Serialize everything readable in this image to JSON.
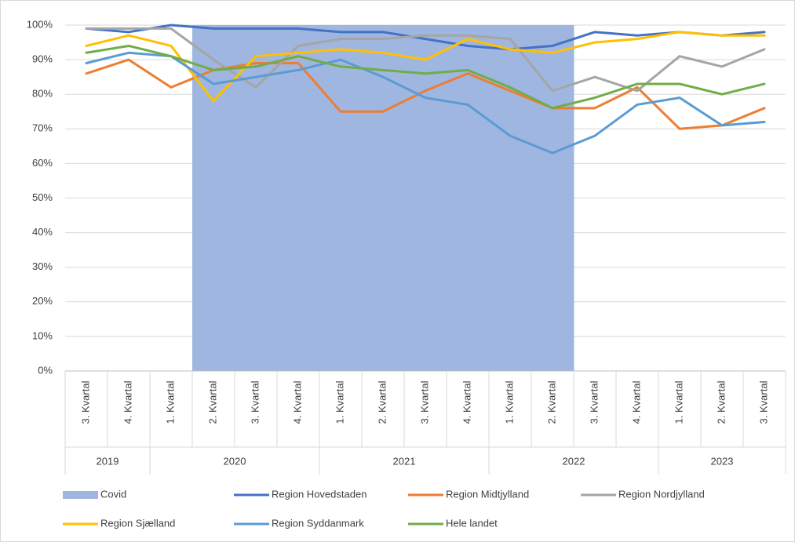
{
  "chart_data": {
    "type": "line",
    "groups": [
      {
        "label": "2019",
        "categories": [
          "3. Kvartal",
          "4. Kvartal"
        ]
      },
      {
        "label": "2020",
        "categories": [
          "1. Kvartal",
          "2. Kvartal",
          "3. Kvartal",
          "4. Kvartal"
        ]
      },
      {
        "label": "2021",
        "categories": [
          "1. Kvartal",
          "2. Kvartal",
          "3. Kvartal",
          "4. Kvartal"
        ]
      },
      {
        "label": "2022",
        "categories": [
          "1. Kvartal",
          "2. Kvartal",
          "3. Kvartal",
          "4. Kvartal"
        ]
      },
      {
        "label": "2023",
        "categories": [
          "1. Kvartal",
          "2. Kvartal",
          "3. Kvartal"
        ]
      }
    ],
    "ylim": [
      0,
      100
    ],
    "yticks": [
      {
        "value": 0,
        "label": "0%"
      },
      {
        "value": 10,
        "label": "10%"
      },
      {
        "value": 20,
        "label": "20%"
      },
      {
        "value": 30,
        "label": "30%"
      },
      {
        "value": 40,
        "label": "40%"
      },
      {
        "value": 50,
        "label": "50%"
      },
      {
        "value": 60,
        "label": "60%"
      },
      {
        "value": 70,
        "label": "70%"
      },
      {
        "value": 80,
        "label": "80%"
      },
      {
        "value": 90,
        "label": "90%"
      },
      {
        "value": 100,
        "label": "100%"
      }
    ],
    "grid": true,
    "legend": "bottom",
    "series": [
      {
        "name": "Covid",
        "type": "bar",
        "color": "#9fb6e1",
        "values": [
          null,
          null,
          null,
          100,
          100,
          100,
          100,
          100,
          100,
          100,
          100,
          100,
          null,
          null,
          null,
          null,
          null
        ]
      },
      {
        "name": "Region Hovedstaden",
        "type": "line",
        "color": "#4472c4",
        "values": [
          99,
          98,
          100,
          99,
          99,
          99,
          98,
          98,
          96,
          94,
          93,
          94,
          98,
          97,
          98,
          97,
          98
        ]
      },
      {
        "name": "Region Midtjylland",
        "type": "line",
        "color": "#ed7d31",
        "values": [
          86,
          90,
          82,
          87,
          89,
          89,
          75,
          75,
          81,
          86,
          81,
          76,
          76,
          82,
          70,
          71,
          76
        ]
      },
      {
        "name": "Region Nordjylland",
        "type": "line",
        "color": "#a5a5a5",
        "values": [
          99,
          99,
          99,
          90,
          82,
          94,
          96,
          96,
          97,
          97,
          96,
          81,
          85,
          81,
          91,
          88,
          93
        ]
      },
      {
        "name": "Region Sjælland",
        "type": "line",
        "color": "#ffc000",
        "values": [
          94,
          97,
          94,
          78,
          91,
          92,
          93,
          92,
          90,
          96,
          93,
          92,
          95,
          96,
          98,
          97,
          97
        ]
      },
      {
        "name": "Region Syddanmark",
        "type": "line",
        "color": "#5b9bd5",
        "values": [
          89,
          92,
          91,
          83,
          85,
          87,
          90,
          85,
          79,
          77,
          68,
          63,
          68,
          77,
          79,
          71,
          72
        ]
      },
      {
        "name": "Hele landet",
        "type": "line",
        "color": "#70ad47",
        "values": [
          92,
          94,
          91,
          87,
          88,
          91,
          88,
          87,
          86,
          87,
          82,
          76,
          79,
          83,
          83,
          80,
          83
        ]
      }
    ]
  }
}
